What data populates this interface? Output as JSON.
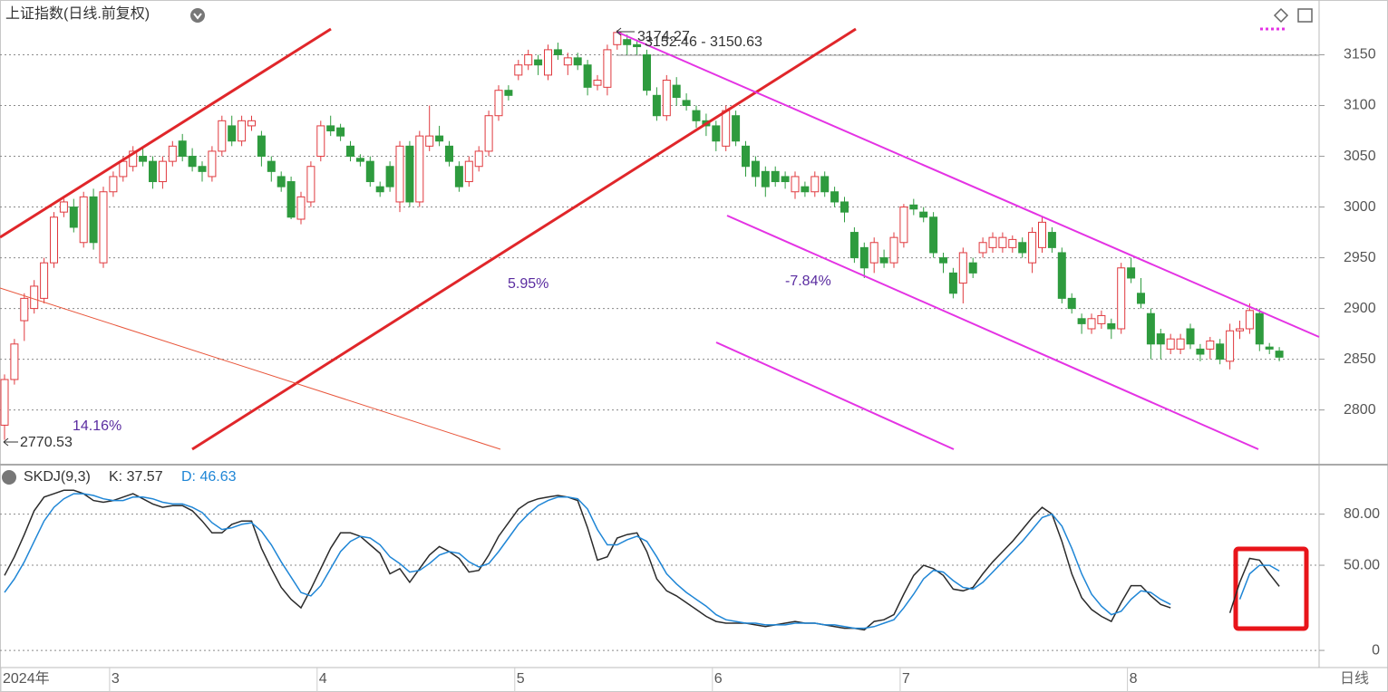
{
  "chart_data": [
    {
      "type": "candlestick",
      "title": "上证指数(日线.前复权)",
      "ylim": [
        2747,
        3204
      ],
      "yticks": [
        2800,
        2850,
        2900,
        2950,
        3000,
        3050,
        3100,
        3150
      ],
      "grid": true,
      "up_color": "#e0393e",
      "down_color": "#2e9b3e",
      "annotations": {
        "low_label": "2770.53",
        "high_label": "3174.27",
        "range_label": "3152.46 - 3150.63",
        "gain_1": "14.16%",
        "gain_2": "5.95%",
        "loss_1": "-7.84%"
      },
      "ohlc": [
        [
          2785,
          2835,
          2770.53,
          2830
        ],
        [
          2830,
          2870,
          2825,
          2865
        ],
        [
          2888,
          2915,
          2868,
          2910
        ],
        [
          2900,
          2928,
          2895,
          2922
        ],
        [
          2910,
          2950,
          2905,
          2945
        ],
        [
          2945,
          2995,
          2940,
          2990
        ],
        [
          2995,
          3008,
          2990,
          3005
        ],
        [
          3000,
          3008,
          2975,
          2980
        ],
        [
          2965,
          3015,
          2960,
          3010
        ],
        [
          3010,
          3018,
          2958,
          2965
        ],
        [
          2945,
          3020,
          2940,
          3015
        ],
        [
          3015,
          3035,
          3010,
          3030
        ],
        [
          3030,
          3050,
          3025,
          3045
        ],
        [
          3040,
          3060,
          3035,
          3055
        ],
        [
          3050,
          3058,
          3040,
          3045
        ],
        [
          3045,
          3050,
          3018,
          3025
        ],
        [
          3025,
          3050,
          3018,
          3045
        ],
        [
          3045,
          3065,
          3040,
          3060
        ],
        [
          3065,
          3072,
          3045,
          3050
        ],
        [
          3050,
          3058,
          3035,
          3040
        ],
        [
          3040,
          3045,
          3025,
          3035
        ],
        [
          3030,
          3060,
          3025,
          3055
        ],
        [
          3055,
          3090,
          3050,
          3085
        ],
        [
          3080,
          3090,
          3060,
          3065
        ],
        [
          3065,
          3090,
          3060,
          3085
        ],
        [
          3080,
          3090,
          3075,
          3085
        ],
        [
          3070,
          3075,
          3040,
          3050
        ],
        [
          3045,
          3050,
          3025,
          3035
        ],
        [
          3030,
          3035,
          3015,
          3020
        ],
        [
          3025,
          3030,
          2988,
          2990
        ],
        [
          2988,
          3015,
          2983,
          3010
        ],
        [
          3005,
          3045,
          3000,
          3040
        ],
        [
          3050,
          3085,
          3045,
          3080
        ],
        [
          3080,
          3090,
          3070,
          3075
        ],
        [
          3078,
          3082,
          3065,
          3070
        ],
        [
          3060,
          3065,
          3045,
          3050
        ],
        [
          3048,
          3052,
          3040,
          3045
        ],
        [
          3045,
          3050,
          3020,
          3025
        ],
        [
          3020,
          3025,
          3010,
          3015
        ],
        [
          3040,
          3045,
          3015,
          3020
        ],
        [
          3005,
          3065,
          2995,
          3060
        ],
        [
          3060,
          3065,
          3000,
          3005
        ],
        [
          3005,
          3075,
          3000,
          3070
        ],
        [
          3060,
          3100,
          3055,
          3070
        ],
        [
          3070,
          3080,
          3060,
          3065
        ],
        [
          3060,
          3065,
          3040,
          3045
        ],
        [
          3040,
          3045,
          3015,
          3020
        ],
        [
          3025,
          3050,
          3020,
          3045
        ],
        [
          3040,
          3060,
          3035,
          3055
        ],
        [
          3055,
          3095,
          3050,
          3090
        ],
        [
          3090,
          3120,
          3085,
          3115
        ],
        [
          3115,
          3120,
          3105,
          3110
        ],
        [
          3130,
          3145,
          3125,
          3140
        ],
        [
          3140,
          3155,
          3135,
          3150
        ],
        [
          3145,
          3150,
          3130,
          3140
        ],
        [
          3130,
          3160,
          3125,
          3155
        ],
        [
          3155,
          3162,
          3145,
          3150
        ],
        [
          3140,
          3152,
          3130,
          3147
        ],
        [
          3147,
          3152,
          3135,
          3140
        ],
        [
          3140,
          3145,
          3110,
          3118
        ],
        [
          3120,
          3130,
          3115,
          3125
        ],
        [
          3118,
          3160,
          3110,
          3155
        ],
        [
          3160,
          3174.27,
          3155,
          3172
        ],
        [
          3165,
          3170,
          3150,
          3160
        ],
        [
          3160,
          3165,
          3150,
          3158
        ],
        [
          3150,
          3155,
          3110,
          3115
        ],
        [
          3110,
          3118,
          3085,
          3090
        ],
        [
          3090,
          3130,
          3085,
          3125
        ],
        [
          3120,
          3128,
          3100,
          3108
        ],
        [
          3105,
          3112,
          3095,
          3100
        ],
        [
          3095,
          3100,
          3078,
          3085
        ],
        [
          3085,
          3092,
          3070,
          3080
        ],
        [
          3080,
          3085,
          3055,
          3065
        ],
        [
          3060,
          3100,
          3055,
          3095
        ],
        [
          3090,
          3095,
          3060,
          3065
        ],
        [
          3060,
          3065,
          3030,
          3040
        ],
        [
          3045,
          3050,
          3020,
          3030
        ],
        [
          3035,
          3040,
          3010,
          3020
        ],
        [
          3035,
          3040,
          3020,
          3025
        ],
        [
          3030,
          3035,
          3018,
          3025
        ],
        [
          3015,
          3035,
          3008,
          3030
        ],
        [
          3020,
          3025,
          3010,
          3015
        ],
        [
          3015,
          3035,
          3010,
          3030
        ],
        [
          3030,
          3035,
          3010,
          3015
        ],
        [
          3015,
          3020,
          3000,
          3005
        ],
        [
          3005,
          3010,
          2985,
          2995
        ],
        [
          2975,
          2980,
          2945,
          2950
        ],
        [
          2960,
          2965,
          2930,
          2940
        ],
        [
          2945,
          2970,
          2935,
          2965
        ],
        [
          2950,
          2958,
          2940,
          2945
        ],
        [
          2945,
          2975,
          2940,
          2970
        ],
        [
          2965,
          3003,
          2960,
          3000
        ],
        [
          3002,
          3008,
          2992,
          2998
        ],
        [
          2995,
          3000,
          2985,
          2990
        ],
        [
          2990,
          2995,
          2950,
          2955
        ],
        [
          2950,
          2955,
          2935,
          2945
        ],
        [
          2935,
          2940,
          2910,
          2915
        ],
        [
          2925,
          2960,
          2905,
          2955
        ],
        [
          2945,
          2950,
          2930,
          2935
        ],
        [
          2955,
          2970,
          2950,
          2965
        ],
        [
          2960,
          2975,
          2955,
          2970
        ],
        [
          2960,
          2975,
          2955,
          2970
        ],
        [
          2960,
          2972,
          2955,
          2968
        ],
        [
          2965,
          2970,
          2950,
          2955
        ],
        [
          2945,
          2980,
          2935,
          2975
        ],
        [
          2960,
          2990,
          2955,
          2985
        ],
        [
          2975,
          2980,
          2955,
          2960
        ],
        [
          2955,
          2960,
          2905,
          2910
        ],
        [
          2910,
          2915,
          2895,
          2900
        ],
        [
          2890,
          2895,
          2875,
          2885
        ],
        [
          2880,
          2895,
          2875,
          2890
        ],
        [
          2885,
          2898,
          2880,
          2893
        ],
        [
          2885,
          2890,
          2870,
          2880
        ],
        [
          2880,
          2945,
          2875,
          2940
        ],
        [
          2940,
          2950,
          2925,
          2930
        ],
        [
          2915,
          2930,
          2900,
          2905
        ],
        [
          2895,
          2900,
          2850,
          2865
        ],
        [
          2875,
          2880,
          2850,
          2865
        ],
        [
          2860,
          2875,
          2855,
          2870
        ],
        [
          2860,
          2875,
          2855,
          2870
        ],
        [
          2880,
          2885,
          2860,
          2865
        ],
        [
          2860,
          2865,
          2848,
          2855
        ],
        [
          2860,
          2872,
          2850,
          2868
        ],
        [
          2865,
          2870,
          2845,
          2850
        ],
        [
          2848,
          2885,
          2840,
          2878
        ],
        [
          2878,
          2888,
          2870,
          2880
        ],
        [
          2880,
          2905,
          2875,
          2898
        ],
        [
          2895,
          2900,
          2858,
          2865
        ],
        [
          2862,
          2866,
          2855,
          2860
        ],
        [
          2858,
          2862,
          2848,
          2852
        ]
      ]
    },
    {
      "type": "line",
      "title": "SKDJ(9,3)",
      "ylim": [
        -9,
        108
      ],
      "yticks": [
        0,
        {
          "value": 50,
          "label": "50.00"
        },
        {
          "value": 80,
          "label": "80.00"
        }
      ],
      "grid": true,
      "period_label": "日线",
      "categories": [
        "2024年",
        null,
        null,
        null,
        null,
        null,
        null,
        null,
        null,
        null,
        null,
        "3",
        null,
        null,
        null,
        null,
        null,
        null,
        null,
        null,
        null,
        null,
        null,
        null,
        null,
        null,
        null,
        null,
        null,
        null,
        null,
        null,
        "4",
        null,
        null,
        null,
        null,
        null,
        null,
        null,
        null,
        null,
        null,
        null,
        null,
        null,
        null,
        null,
        null,
        null,
        null,
        null,
        "5",
        null,
        null,
        null,
        null,
        null,
        null,
        null,
        null,
        null,
        null,
        null,
        null,
        null,
        null,
        null,
        null,
        null,
        null,
        null,
        "6",
        null,
        null,
        null,
        null,
        null,
        null,
        null,
        null,
        null,
        null,
        null,
        null,
        null,
        null,
        null,
        null,
        null,
        null,
        "7",
        null,
        null,
        null,
        null,
        null,
        null,
        null,
        null,
        null,
        null,
        null,
        null,
        null,
        null,
        null,
        null,
        null,
        null,
        null,
        null,
        null,
        null,
        "8",
        null,
        null,
        null,
        null,
        null,
        null,
        null,
        null,
        null,
        null,
        null,
        null,
        null,
        null,
        null
      ],
      "series": [
        {
          "name": "K: 37.57",
          "color": "#2b2b2b",
          "values": [
            44,
            55,
            68,
            82,
            90,
            92,
            94,
            94,
            92,
            88,
            87,
            88,
            90,
            92,
            89,
            86,
            84,
            85,
            85,
            82,
            76,
            69,
            69,
            74,
            76,
            76,
            60,
            48,
            37,
            30,
            25,
            36,
            48,
            60,
            69,
            69,
            67,
            62,
            57,
            45,
            48,
            40,
            48,
            56,
            61,
            58,
            54,
            46,
            47,
            56,
            67,
            75,
            83,
            87,
            89,
            90,
            91,
            90,
            88,
            72,
            53,
            55,
            66,
            68,
            69,
            58,
            42,
            35,
            32,
            28,
            24,
            20,
            17,
            16,
            16,
            16,
            15,
            14,
            15,
            16,
            17,
            16,
            16,
            15,
            14,
            13,
            13,
            12,
            17,
            18,
            21,
            33,
            44,
            50,
            48,
            44,
            36,
            35,
            37,
            45,
            52,
            58,
            64,
            71,
            78,
            84,
            80,
            64,
            45,
            31,
            24,
            20,
            17,
            28,
            38,
            38,
            32,
            27,
            25,
            null,
            null,
            null,
            null,
            null,
            22,
            40,
            54,
            53,
            45,
            37.57
          ]
        },
        {
          "name": "D: 46.63",
          "color": "#1f86d6",
          "values": [
            34,
            42,
            52,
            64,
            76,
            84,
            89,
            92,
            92,
            91,
            89,
            88,
            88,
            90,
            90,
            89,
            87,
            86,
            86,
            84,
            81,
            75,
            71,
            72,
            74,
            75,
            70,
            62,
            52,
            43,
            34,
            32,
            38,
            48,
            58,
            64,
            67,
            66,
            62,
            55,
            51,
            46,
            47,
            51,
            56,
            58,
            57,
            52,
            49,
            51,
            58,
            66,
            74,
            80,
            85,
            88,
            90,
            90,
            89,
            83,
            71,
            62,
            62,
            65,
            67,
            64,
            55,
            45,
            39,
            34,
            30,
            26,
            21,
            18,
            17,
            16,
            16,
            15,
            15,
            15,
            16,
            16,
            16,
            15,
            15,
            14,
            13,
            13,
            14,
            16,
            18,
            25,
            33,
            42,
            47,
            46,
            41,
            37,
            36,
            40,
            46,
            52,
            58,
            64,
            71,
            78,
            80,
            73,
            60,
            45,
            33,
            26,
            21,
            23,
            30,
            35,
            34,
            30,
            27,
            null,
            null,
            null,
            null,
            null,
            null,
            30,
            45,
            50,
            50,
            46.63
          ]
        }
      ]
    }
  ]
}
